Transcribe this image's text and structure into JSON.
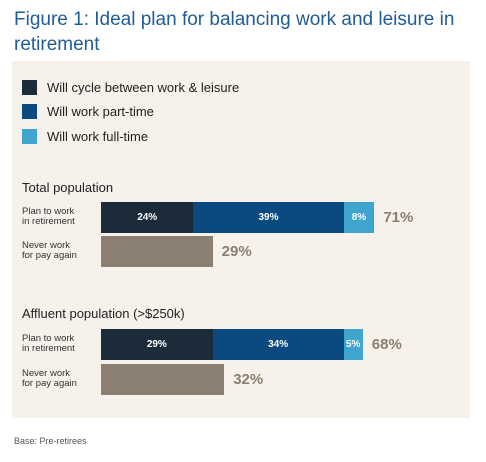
{
  "title": "Figure 1: Ideal plan for balancing work and leisure in retirement",
  "legend": [
    {
      "label": "Will cycle between work & leisure",
      "color": "#1c2b3a"
    },
    {
      "label": "Will work part-time",
      "color": "#0b4a80"
    },
    {
      "label": "Will work full-time",
      "color": "#3fa5cf"
    }
  ],
  "base_note": "Base: Pre-retirees",
  "chart_data": [
    {
      "type": "bar",
      "orientation": "horizontal",
      "stacked": true,
      "title": "Total population",
      "categories": [
        "Plan to work in retirement",
        "Never work for pay again"
      ],
      "series": [
        {
          "name": "Will cycle between work & leisure",
          "values": [
            24,
            null
          ],
          "labels": [
            "24%",
            ""
          ]
        },
        {
          "name": "Will work part-time",
          "values": [
            39,
            null
          ],
          "labels": [
            "39%",
            ""
          ]
        },
        {
          "name": "Will work full-time",
          "values": [
            8,
            null
          ],
          "labels": [
            "8%",
            ""
          ]
        },
        {
          "values": [
            null,
            29
          ],
          "color": "#8a7f70"
        }
      ],
      "totals": [
        "71%",
        "29%"
      ]
    },
    {
      "type": "bar",
      "orientation": "horizontal",
      "stacked": true,
      "title": "Affluent population (>$250k)",
      "categories": [
        "Plan to work in retirement",
        "Never work for pay again"
      ],
      "series": [
        {
          "name": "Will cycle between work & leisure",
          "values": [
            29,
            null
          ],
          "labels": [
            "29%",
            ""
          ]
        },
        {
          "name": "Will work part-time",
          "values": [
            34,
            null
          ],
          "labels": [
            "34%",
            ""
          ]
        },
        {
          "name": "Will work full-time",
          "values": [
            5,
            null
          ],
          "labels": [
            "5%",
            ""
          ]
        },
        {
          "values": [
            null,
            32
          ],
          "color": "#8a7f70"
        }
      ],
      "totals": [
        "68%",
        "32%"
      ]
    }
  ],
  "row_labels": {
    "plan": [
      "Plan to work",
      "in retirement"
    ],
    "never": [
      "Never work",
      "for pay again"
    ]
  }
}
